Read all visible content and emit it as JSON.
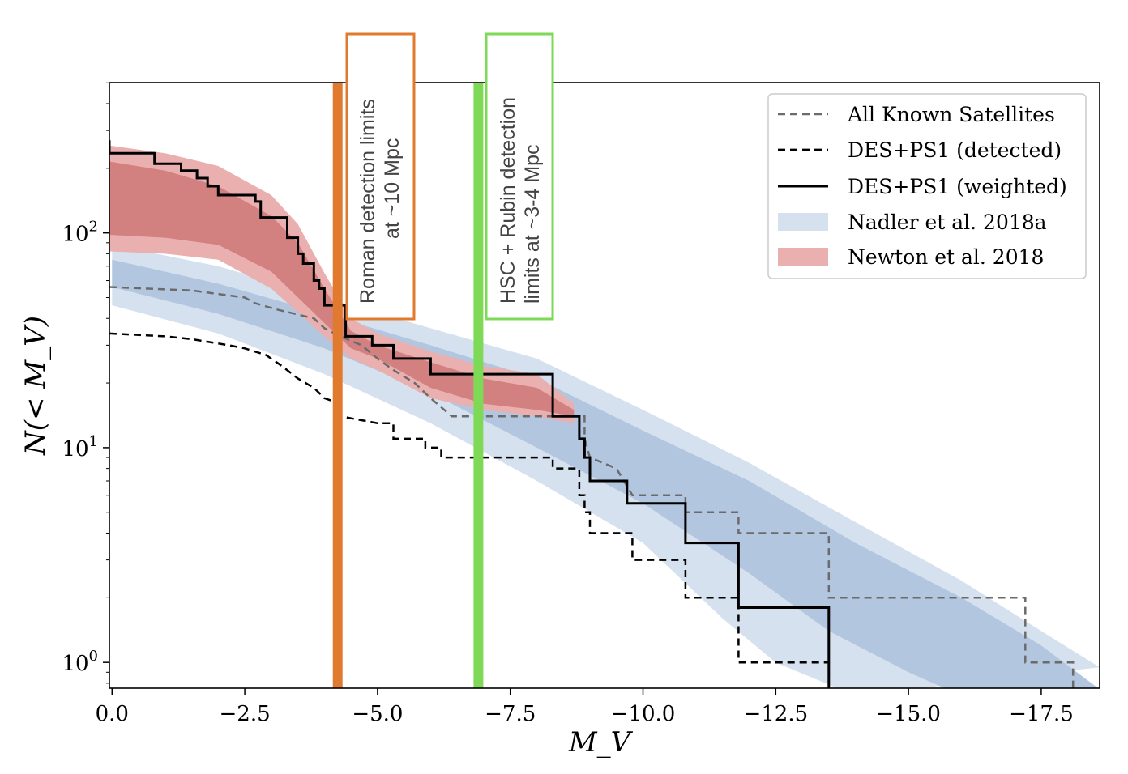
{
  "chart_data": {
    "type": "line",
    "xlabel": "M_V",
    "ylabel": "N(< M_V)",
    "xlim": [
      0.05,
      -18.6
    ],
    "ylim_log10": [
      -0.12,
      2.7
    ],
    "x_ticks": [
      0.0,
      -2.5,
      -5.0,
      -7.5,
      -10.0,
      -12.5,
      -15.0,
      -17.5
    ],
    "x_tick_labels": [
      "0.0",
      "−2.5",
      "−5.0",
      "−7.5",
      "−10.0",
      "−12.5",
      "−15.0",
      "−17.5"
    ],
    "y_ticks": [
      {
        "value": 100,
        "base": "10",
        "exp": "2"
      },
      {
        "value": 10,
        "base": "10",
        "exp": "1"
      },
      {
        "value": 1,
        "base": "10",
        "exp": "0"
      }
    ],
    "legend": [
      {
        "key": "all_known",
        "label": "All Known Satellites"
      },
      {
        "key": "des_detected",
        "label": "DES+PS1 (detected)"
      },
      {
        "key": "des_weighted",
        "label": "DES+PS1 (weighted)"
      },
      {
        "key": "nadler",
        "label": "Nadler et al. 2018a"
      },
      {
        "key": "newton",
        "label": "Newton et al. 2018"
      }
    ],
    "colors": {
      "nadler_outer": "#d6e1ef",
      "nadler_inner": "#b3c6e0",
      "newton_outer": "#eab0b0",
      "newton_inner": "#d38081",
      "all_known": "#6b6b6b",
      "des_detected": "#000000",
      "des_weighted": "#000000",
      "roman": "#e07a2e",
      "hsc": "#7ed957"
    },
    "series": [
      {
        "name": "All Known Satellites",
        "style": "dashed-gray",
        "points": [
          [
            0.05,
            56
          ],
          [
            -1.5,
            54
          ],
          [
            -2.5,
            50
          ],
          [
            -2.7,
            47
          ],
          [
            -3.1,
            44
          ],
          [
            -3.8,
            40
          ],
          [
            -4.0,
            36
          ],
          [
            -4.3,
            33
          ],
          [
            -4.7,
            30
          ],
          [
            -5.0,
            26
          ],
          [
            -5.3,
            23
          ],
          [
            -5.7,
            20
          ],
          [
            -6.0,
            17
          ],
          [
            -6.4,
            14
          ],
          [
            -8.9,
            14
          ],
          [
            -8.9,
            11
          ],
          [
            -9.0,
            9
          ],
          [
            -9.5,
            8
          ],
          [
            -9.8,
            6
          ],
          [
            -10.8,
            6
          ],
          [
            -10.8,
            5
          ],
          [
            -11.8,
            5
          ],
          [
            -11.8,
            4
          ],
          [
            -13.5,
            4
          ],
          [
            -13.5,
            2
          ],
          [
            -17.2,
            2
          ],
          [
            -17.2,
            1
          ],
          [
            -18.1,
            1
          ],
          [
            -18.1,
            0.7
          ]
        ]
      },
      {
        "name": "DES+PS1 (detected)",
        "style": "dashed-black",
        "points": [
          [
            0.05,
            34
          ],
          [
            -1.0,
            33
          ],
          [
            -1.5,
            32
          ],
          [
            -2.2,
            30
          ],
          [
            -2.5,
            29
          ],
          [
            -2.9,
            27
          ],
          [
            -3.2,
            24
          ],
          [
            -3.5,
            21
          ],
          [
            -3.8,
            19
          ],
          [
            -4.0,
            17
          ],
          [
            -4.3,
            16
          ],
          [
            -4.3,
            14
          ],
          [
            -5.0,
            13
          ],
          [
            -5.3,
            13
          ],
          [
            -5.3,
            11
          ],
          [
            -5.9,
            11
          ],
          [
            -5.9,
            10
          ],
          [
            -6.2,
            10
          ],
          [
            -6.2,
            9
          ],
          [
            -8.3,
            9
          ],
          [
            -8.3,
            8
          ],
          [
            -8.8,
            8
          ],
          [
            -8.8,
            6
          ],
          [
            -8.9,
            6
          ],
          [
            -8.9,
            5
          ],
          [
            -9.0,
            5
          ],
          [
            -9.0,
            4
          ],
          [
            -9.8,
            4
          ],
          [
            -9.8,
            3
          ],
          [
            -10.8,
            3
          ],
          [
            -10.8,
            2
          ],
          [
            -11.8,
            2
          ],
          [
            -11.8,
            1
          ],
          [
            -13.5,
            1
          ],
          [
            -13.5,
            0.7
          ]
        ]
      },
      {
        "name": "DES+PS1 (weighted)",
        "style": "solid-black",
        "points": [
          [
            0.05,
            270
          ],
          [
            0.05,
            235
          ],
          [
            -0.8,
            235
          ],
          [
            -0.8,
            210
          ],
          [
            -1.3,
            210
          ],
          [
            -1.3,
            195
          ],
          [
            -1.6,
            195
          ],
          [
            -1.6,
            180
          ],
          [
            -1.8,
            180
          ],
          [
            -1.8,
            165
          ],
          [
            -2.0,
            165
          ],
          [
            -2.0,
            150
          ],
          [
            -2.7,
            150
          ],
          [
            -2.7,
            140
          ],
          [
            -2.8,
            140
          ],
          [
            -2.8,
            118
          ],
          [
            -3.3,
            118
          ],
          [
            -3.3,
            95
          ],
          [
            -3.5,
            95
          ],
          [
            -3.5,
            80
          ],
          [
            -3.6,
            80
          ],
          [
            -3.6,
            72
          ],
          [
            -3.8,
            72
          ],
          [
            -3.8,
            60
          ],
          [
            -3.9,
            60
          ],
          [
            -3.9,
            55
          ],
          [
            -4.0,
            55
          ],
          [
            -4.0,
            46
          ],
          [
            -4.4,
            46
          ],
          [
            -4.4,
            33
          ],
          [
            -4.9,
            33
          ],
          [
            -4.9,
            30
          ],
          [
            -5.3,
            30
          ],
          [
            -5.3,
            26
          ],
          [
            -6.0,
            26
          ],
          [
            -6.0,
            22
          ],
          [
            -8.3,
            22
          ],
          [
            -8.3,
            14
          ],
          [
            -8.8,
            14
          ],
          [
            -8.8,
            11
          ],
          [
            -8.9,
            11
          ],
          [
            -8.9,
            9
          ],
          [
            -9.0,
            9
          ],
          [
            -9.0,
            7
          ],
          [
            -9.7,
            7
          ],
          [
            -9.7,
            5.5
          ],
          [
            -10.8,
            5.5
          ],
          [
            -10.8,
            3.6
          ],
          [
            -11.8,
            3.6
          ],
          [
            -11.8,
            1.8
          ],
          [
            -13.5,
            1.8
          ],
          [
            -13.5,
            0.7
          ]
        ]
      }
    ],
    "bands": [
      {
        "name": "Nadler et al. 2018a (outer)",
        "color_key": "nadler_outer",
        "upper": [
          [
            0.0,
            88
          ],
          [
            -2.0,
            70
          ],
          [
            -4.0,
            50
          ],
          [
            -6.0,
            36
          ],
          [
            -8.0,
            26
          ],
          [
            -10.0,
            15
          ],
          [
            -12.0,
            8.5
          ],
          [
            -14.0,
            4.5
          ],
          [
            -16.0,
            2.4
          ],
          [
            -17.5,
            1.4
          ],
          [
            -18.6,
            0.95
          ]
        ],
        "lower": [
          [
            0.0,
            46
          ],
          [
            -2.0,
            34
          ],
          [
            -4.0,
            22
          ],
          [
            -6.0,
            13
          ],
          [
            -8.0,
            7
          ],
          [
            -10.0,
            3.6
          ],
          [
            -11.5,
            1.6
          ],
          [
            -12.5,
            1.0
          ],
          [
            -14.0,
            0.7
          ]
        ]
      },
      {
        "name": "Nadler et al. 2018a (inner)",
        "color_key": "nadler_inner",
        "upper": [
          [
            0.0,
            75
          ],
          [
            -2.0,
            58
          ],
          [
            -4.0,
            42
          ],
          [
            -6.0,
            30
          ],
          [
            -8.0,
            21
          ],
          [
            -10.0,
            12
          ],
          [
            -12.0,
            7
          ],
          [
            -14.0,
            3.6
          ],
          [
            -16.0,
            2.0
          ],
          [
            -17.5,
            1.2
          ],
          [
            -18.6,
            0.75
          ]
        ],
        "lower": [
          [
            0.0,
            56
          ],
          [
            -2.0,
            42
          ],
          [
            -4.0,
            29
          ],
          [
            -6.0,
            18
          ],
          [
            -8.0,
            10
          ],
          [
            -10.0,
            5.5
          ],
          [
            -12.0,
            2.6
          ],
          [
            -13.5,
            1.4
          ],
          [
            -15.0,
            0.9
          ],
          [
            -16.0,
            0.7
          ]
        ]
      },
      {
        "name": "Newton et al. 2018 (outer)",
        "color_key": "newton_outer",
        "upper": [
          [
            0.05,
            255
          ],
          [
            -1.0,
            235
          ],
          [
            -2.0,
            205
          ],
          [
            -3.0,
            150
          ],
          [
            -3.5,
            110
          ],
          [
            -4.0,
            65
          ],
          [
            -4.5,
            40
          ],
          [
            -5.0,
            34
          ],
          [
            -6.0,
            28
          ],
          [
            -7.0,
            24
          ],
          [
            -8.0,
            22
          ],
          [
            -8.7,
            16
          ]
        ],
        "lower": [
          [
            0.05,
            82
          ],
          [
            -1.0,
            80
          ],
          [
            -2.0,
            75
          ],
          [
            -3.0,
            55
          ],
          [
            -4.0,
            33
          ],
          [
            -4.5,
            26
          ],
          [
            -5.0,
            23
          ],
          [
            -6.0,
            17
          ],
          [
            -7.0,
            15
          ],
          [
            -8.0,
            14
          ],
          [
            -8.7,
            13
          ]
        ]
      },
      {
        "name": "Newton et al. 2018 (inner)",
        "color_key": "newton_inner",
        "upper": [
          [
            0.05,
            215
          ],
          [
            -1.0,
            195
          ],
          [
            -2.0,
            165
          ],
          [
            -3.0,
            120
          ],
          [
            -3.5,
            90
          ],
          [
            -4.0,
            55
          ],
          [
            -4.5,
            35
          ],
          [
            -5.0,
            30
          ],
          [
            -6.0,
            25
          ],
          [
            -7.0,
            21
          ],
          [
            -8.0,
            19
          ],
          [
            -8.7,
            15
          ]
        ],
        "lower": [
          [
            0.05,
            98
          ],
          [
            -1.0,
            95
          ],
          [
            -2.0,
            88
          ],
          [
            -3.0,
            66
          ],
          [
            -4.0,
            38
          ],
          [
            -4.5,
            29
          ],
          [
            -5.0,
            26
          ],
          [
            -6.0,
            19
          ],
          [
            -7.0,
            16
          ],
          [
            -8.0,
            15
          ],
          [
            -8.7,
            14
          ]
        ]
      }
    ],
    "vlines": [
      {
        "name": "roman",
        "x": -4.25,
        "color_key": "roman",
        "top_value": 500
      },
      {
        "name": "hsc",
        "x": -6.9,
        "color_key": "hsc",
        "top_value": 500
      }
    ],
    "annotations": [
      {
        "key": "roman",
        "lines": [
          "Roman detection limits",
          "at ~10 Mpc"
        ]
      },
      {
        "key": "hsc",
        "lines": [
          "HSC + Rubin detection",
          "limits at  ~3-4 Mpc"
        ]
      }
    ]
  }
}
